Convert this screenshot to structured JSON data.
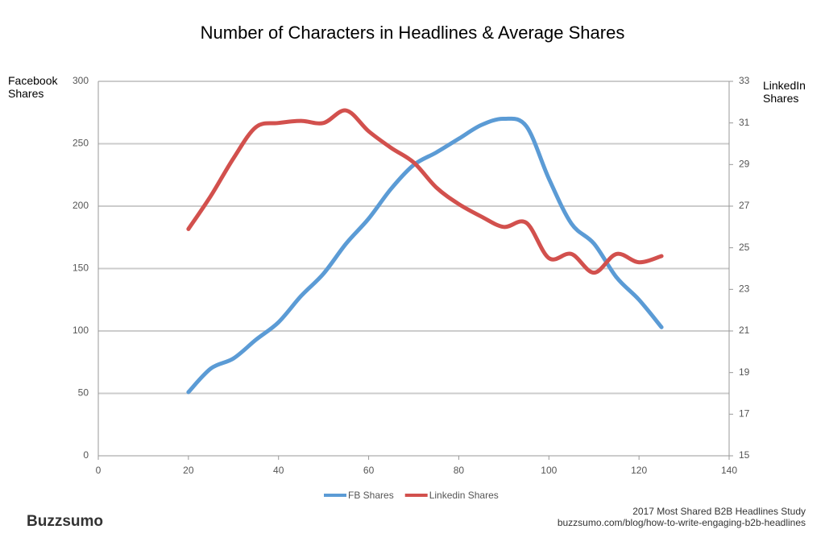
{
  "chart_data": {
    "type": "line",
    "title": "Number of Characters in Headlines & Average Shares",
    "ylabel": "Facebook Shares",
    "y2label": "LinkedIn Shares",
    "x": [
      20,
      25,
      30,
      35,
      40,
      45,
      50,
      55,
      60,
      65,
      70,
      75,
      80,
      85,
      90,
      95,
      100,
      105,
      110,
      115,
      120,
      125
    ],
    "series": [
      {
        "name": "FB Shares",
        "color": "#5b9bd5",
        "axis": "y",
        "values": [
          51,
          70,
          78,
          93,
          107,
          128,
          146,
          170,
          190,
          214,
          233,
          243,
          254,
          265,
          270,
          264,
          222,
          186,
          170,
          143,
          125,
          103
        ]
      },
      {
        "name": "Linkedin Shares",
        "color": "#d2504d",
        "axis": "y2",
        "values": [
          25.9,
          27.5,
          29.3,
          30.8,
          31.0,
          31.1,
          31.0,
          31.6,
          30.6,
          29.8,
          29.1,
          27.9,
          27.1,
          26.5,
          26.0,
          26.2,
          24.5,
          24.7,
          23.8,
          24.7,
          24.3,
          24.6
        ]
      }
    ],
    "xlim": [
      0,
      140
    ],
    "xticks": [
      0,
      20,
      40,
      60,
      80,
      100,
      120,
      140
    ],
    "ylim": [
      0,
      300
    ],
    "yticks": [
      0,
      50,
      100,
      150,
      200,
      250,
      300
    ],
    "y2lim": [
      15,
      33
    ],
    "y2ticks": [
      15,
      17,
      19,
      21,
      23,
      25,
      27,
      29,
      31,
      33
    ],
    "grid": true,
    "legend": "bottom",
    "brand": "Buzzsumo",
    "source_title": "2017 Most Shared B2B Headlines Study",
    "source_url": "buzzsumo.com/blog/how-to-write-engaging-b2b-headlines"
  }
}
